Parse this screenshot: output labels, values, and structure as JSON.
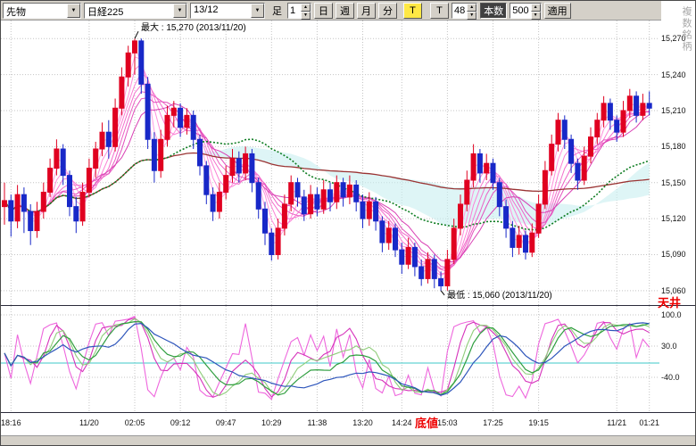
{
  "icons": {
    "dropdown_arrow": "▼",
    "spin_up": "▲",
    "spin_down": "▼"
  },
  "toolbar": {
    "market_select": "先物",
    "symbol_select": "日経225",
    "contract_select": "13/12",
    "bar_type_label": "足",
    "interval_value": "1",
    "periods": [
      "日",
      "週",
      "月",
      "分"
    ],
    "tick_button": "T",
    "tick_button2": "T",
    "bars_interval_value": "48",
    "bar_count_label": "本数",
    "bar_count_value": "500",
    "apply_button": "適用",
    "multi_symbol_label": "複数銘柄"
  },
  "main_chart": {
    "annotations": {
      "max_label": "最大 : 15,270 (2013/11/20)",
      "min_label": "最低 : 15,060 (2013/11/20)"
    },
    "ceiling_label": "天井",
    "bottom_label": "底値"
  },
  "chart_data": {
    "type": "candlestick",
    "up_color": "#e00020",
    "down_color": "#1828c8",
    "max_candle_index": 20,
    "min_candle_index": 67,
    "price_axis": {
      "view_max": 15285,
      "view_min": 15048,
      "ticks": [
        15270,
        15240,
        15210,
        15180,
        15150,
        15120,
        15090,
        15060
      ],
      "labels": [
        "15,270",
        "15,240",
        "15,210",
        "15,180",
        "15,150",
        "15,120",
        "15,090",
        "15,060"
      ]
    },
    "x_axis": {
      "ticks": [
        {
          "text": "18:16",
          "i": 1
        },
        {
          "text": "11/20",
          "i": 13
        },
        {
          "text": "02:05",
          "i": 20
        },
        {
          "text": "09:12",
          "i": 27
        },
        {
          "text": "09:47",
          "i": 34
        },
        {
          "text": "10:29",
          "i": 41
        },
        {
          "text": "11:38",
          "i": 48
        },
        {
          "text": "13:20",
          "i": 55
        },
        {
          "text": "14:24",
          "i": 61
        },
        {
          "text": "15:03",
          "i": 68
        },
        {
          "text": "17:25",
          "i": 75
        },
        {
          "text": "19:15",
          "i": 82
        },
        {
          "text": "11/21",
          "i": 94
        },
        {
          "text": "01:21",
          "i": 99
        }
      ]
    },
    "overlays": {
      "cloud_fast": 30,
      "cloud_slow": 60,
      "cloud_color": "#c8eef0",
      "ribbon": [
        {
          "period": 2,
          "color": "#ffb0e8"
        },
        {
          "period": 3,
          "color": "#ffa0e2"
        },
        {
          "period": 4,
          "color": "#ff90dc"
        },
        {
          "period": 5,
          "color": "#fb80d5"
        },
        {
          "period": 6,
          "color": "#f470cd"
        },
        {
          "period": 7,
          "color": "#ec60c5"
        },
        {
          "period": 8,
          "color": "#e350bd"
        },
        {
          "period": 10,
          "color": "#d940b4"
        }
      ],
      "ma_green": {
        "period": 26,
        "color": "#0e7d22"
      },
      "ma_slow": {
        "period": 90,
        "color": "#9a3333"
      }
    },
    "oscillator": {
      "ticks": [
        {
          "label": "100.0",
          "value": 100
        },
        {
          "label": "30.0",
          "value": 30
        },
        {
          "label": "-40.0",
          "value": -40
        }
      ],
      "baseline": -8,
      "baseline_color": "#3cc8c8",
      "lines": [
        {
          "period": 7,
          "smooth": 1,
          "color": "#ee66dd",
          "width": 1.1
        },
        {
          "period": 12,
          "smooth": 3,
          "color": "#d633bb",
          "width": 1.1
        },
        {
          "period": 16,
          "smooth": 4,
          "color": "#8fcd7a",
          "width": 1.1
        },
        {
          "period": 22,
          "smooth": 5,
          "color": "#2f9e3f",
          "width": 1.2
        },
        {
          "period": 30,
          "smooth": 8,
          "color": "#2d55bb",
          "width": 1.2
        }
      ]
    },
    "candles": [
      [
        15130,
        15150,
        15115,
        15135
      ],
      [
        15135,
        15140,
        15105,
        15118
      ],
      [
        15118,
        15148,
        15112,
        15140
      ],
      [
        15140,
        15146,
        15108,
        15126
      ],
      [
        15126,
        15132,
        15098,
        15110
      ],
      [
        15110,
        15134,
        15104,
        15126
      ],
      [
        15126,
        15150,
        15120,
        15142
      ],
      [
        15142,
        15170,
        15138,
        15162
      ],
      [
        15162,
        15186,
        15156,
        15178
      ],
      [
        15178,
        15182,
        15148,
        15156
      ],
      [
        15156,
        15160,
        15122,
        15130
      ],
      [
        15130,
        15138,
        15108,
        15118
      ],
      [
        15118,
        15150,
        15114,
        15142
      ],
      [
        15142,
        15170,
        15138,
        15162
      ],
      [
        15162,
        15184,
        15154,
        15178
      ],
      [
        15178,
        15200,
        15172,
        15192
      ],
      [
        15192,
        15202,
        15170,
        15180
      ],
      [
        15180,
        15220,
        15176,
        15212
      ],
      [
        15212,
        15246,
        15206,
        15238
      ],
      [
        15238,
        15264,
        15230,
        15258
      ],
      [
        15258,
        15270,
        15240,
        15268
      ],
      [
        15268,
        15270,
        15224,
        15232
      ],
      [
        15232,
        15238,
        15178,
        15186
      ],
      [
        15186,
        15192,
        15150,
        15160
      ],
      [
        15160,
        15194,
        15154,
        15186
      ],
      [
        15186,
        15214,
        15180,
        15206
      ],
      [
        15206,
        15218,
        15196,
        15212
      ],
      [
        15212,
        15216,
        15188,
        15196
      ],
      [
        15196,
        15212,
        15190,
        15206
      ],
      [
        15206,
        15210,
        15178,
        15186
      ],
      [
        15186,
        15190,
        15156,
        15164
      ],
      [
        15164,
        15168,
        15132,
        15140
      ],
      [
        15140,
        15146,
        15118,
        15126
      ],
      [
        15126,
        15150,
        15120,
        15142
      ],
      [
        15142,
        15164,
        15136,
        15156
      ],
      [
        15156,
        15178,
        15150,
        15170
      ],
      [
        15170,
        15176,
        15150,
        15158
      ],
      [
        15158,
        15180,
        15152,
        15174
      ],
      [
        15174,
        15178,
        15142,
        15150
      ],
      [
        15150,
        15154,
        15120,
        15128
      ],
      [
        15128,
        15134,
        15098,
        15108
      ],
      [
        15108,
        15112,
        15085,
        15090
      ],
      [
        15090,
        15120,
        15086,
        15112
      ],
      [
        15112,
        15140,
        15106,
        15132
      ],
      [
        15132,
        15156,
        15126,
        15150
      ],
      [
        15150,
        15154,
        15130,
        15138
      ],
      [
        15138,
        15144,
        15118,
        15124
      ],
      [
        15124,
        15148,
        15120,
        15140
      ],
      [
        15140,
        15146,
        15122,
        15128
      ],
      [
        15128,
        15152,
        15124,
        15144
      ],
      [
        15144,
        15150,
        15126,
        15134
      ],
      [
        15134,
        15156,
        15128,
        15150
      ],
      [
        15150,
        15154,
        15130,
        15138
      ],
      [
        15138,
        15156,
        15132,
        15148
      ],
      [
        15148,
        15152,
        15126,
        15134
      ],
      [
        15134,
        15140,
        15112,
        15120
      ],
      [
        15120,
        15142,
        15114,
        15134
      ],
      [
        15134,
        15138,
        15110,
        15118
      ],
      [
        15118,
        15122,
        15092,
        15100
      ],
      [
        15100,
        15118,
        15094,
        15112
      ],
      [
        15112,
        15116,
        15088,
        15094
      ],
      [
        15094,
        15100,
        15074,
        15082
      ],
      [
        15082,
        15104,
        15078,
        15096
      ],
      [
        15096,
        15100,
        15072,
        15080
      ],
      [
        15080,
        15086,
        15064,
        15070
      ],
      [
        15070,
        15092,
        15066,
        15086
      ],
      [
        15086,
        15090,
        15062,
        15070
      ],
      [
        15070,
        15076,
        15060,
        15064
      ],
      [
        15064,
        15094,
        15060,
        15086
      ],
      [
        15086,
        15120,
        15082,
        15112
      ],
      [
        15112,
        15140,
        15106,
        15132
      ],
      [
        15132,
        15160,
        15126,
        15152
      ],
      [
        15152,
        15182,
        15146,
        15174
      ],
      [
        15174,
        15178,
        15150,
        15158
      ],
      [
        15158,
        15174,
        15152,
        15166
      ],
      [
        15166,
        15170,
        15144,
        15150
      ],
      [
        15150,
        15154,
        15122,
        15130
      ],
      [
        15130,
        15136,
        15104,
        15112
      ],
      [
        15112,
        15118,
        15088,
        15096
      ],
      [
        15096,
        15114,
        15090,
        15106
      ],
      [
        15106,
        15110,
        15086,
        15092
      ],
      [
        15092,
        15116,
        15088,
        15108
      ],
      [
        15108,
        15140,
        15104,
        15132
      ],
      [
        15132,
        15168,
        15128,
        15160
      ],
      [
        15160,
        15190,
        15156,
        15182
      ],
      [
        15182,
        15208,
        15176,
        15202
      ],
      [
        15202,
        15206,
        15178,
        15186
      ],
      [
        15186,
        15190,
        15158,
        15166
      ],
      [
        15166,
        15170,
        15144,
        15152
      ],
      [
        15152,
        15180,
        15148,
        15172
      ],
      [
        15172,
        15196,
        15166,
        15188
      ],
      [
        15188,
        15208,
        15182,
        15202
      ],
      [
        15202,
        15222,
        15196,
        15216
      ],
      [
        15216,
        15220,
        15194,
        15202
      ],
      [
        15202,
        15206,
        15184,
        15192
      ],
      [
        15192,
        15218,
        15188,
        15210
      ],
      [
        15210,
        15228,
        15204,
        15222
      ],
      [
        15222,
        15226,
        15200,
        15206
      ],
      [
        15206,
        15224,
        15202,
        15216
      ],
      [
        15216,
        15226,
        15206,
        15212
      ]
    ]
  }
}
